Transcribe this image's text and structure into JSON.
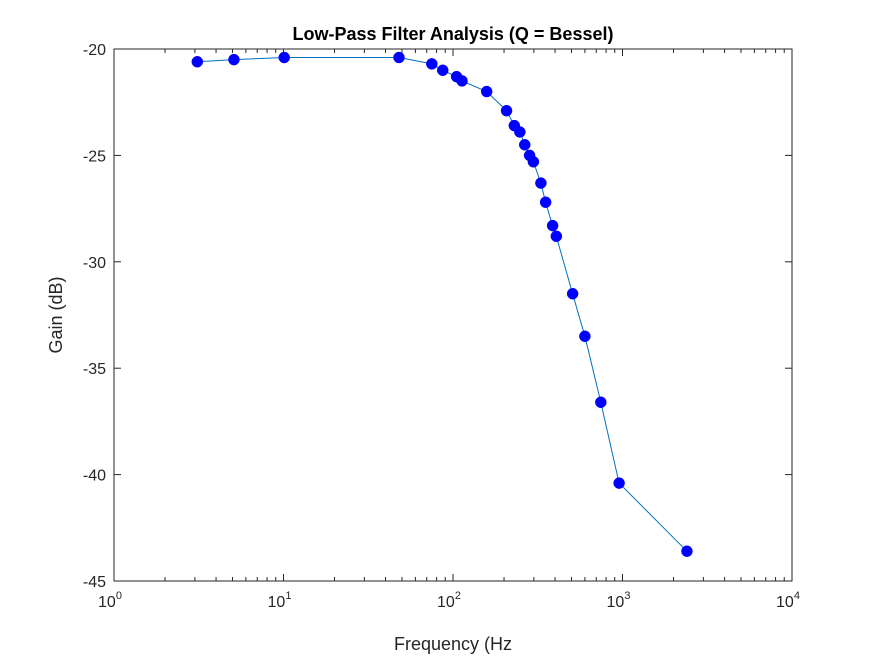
{
  "chart_data": {
    "type": "line",
    "title": "Low-Pass Filter Analysis (Q = Bessel)",
    "xlabel": "Frequency (Hz",
    "ylabel": "Gain (dB)",
    "xscale": "log",
    "xlim": [
      1,
      10000
    ],
    "ylim": [
      -45,
      -20
    ],
    "grid": false,
    "x_ticks": [
      {
        "base": "10",
        "exp": "0",
        "value": 1
      },
      {
        "base": "10",
        "exp": "1",
        "value": 10
      },
      {
        "base": "10",
        "exp": "2",
        "value": 100
      },
      {
        "base": "10",
        "exp": "3",
        "value": 1000
      },
      {
        "base": "10",
        "exp": "4",
        "value": 10000
      }
    ],
    "y_ticks": [
      "-20",
      "-25",
      "-30",
      "-35",
      "-40",
      "-45"
    ],
    "series": [
      {
        "line_color": "#0072BD",
        "marker_color": "#0000FF",
        "marker": "circle",
        "x": [
          3.1,
          5.1,
          10.1,
          48,
          75,
          87,
          105,
          113,
          158,
          207,
          230,
          248,
          265,
          283,
          298,
          330,
          352,
          387,
          407,
          508,
          600,
          745,
          955,
          2400
        ],
        "y": [
          -20.6,
          -20.5,
          -20.4,
          -20.4,
          -20.7,
          -21.0,
          -21.3,
          -21.5,
          -22.0,
          -22.9,
          -23.6,
          -23.9,
          -24.5,
          -25.0,
          -25.3,
          -26.3,
          -27.2,
          -28.3,
          -28.8,
          -31.5,
          -33.5,
          -36.6,
          -40.4,
          -43.6
        ]
      }
    ]
  }
}
